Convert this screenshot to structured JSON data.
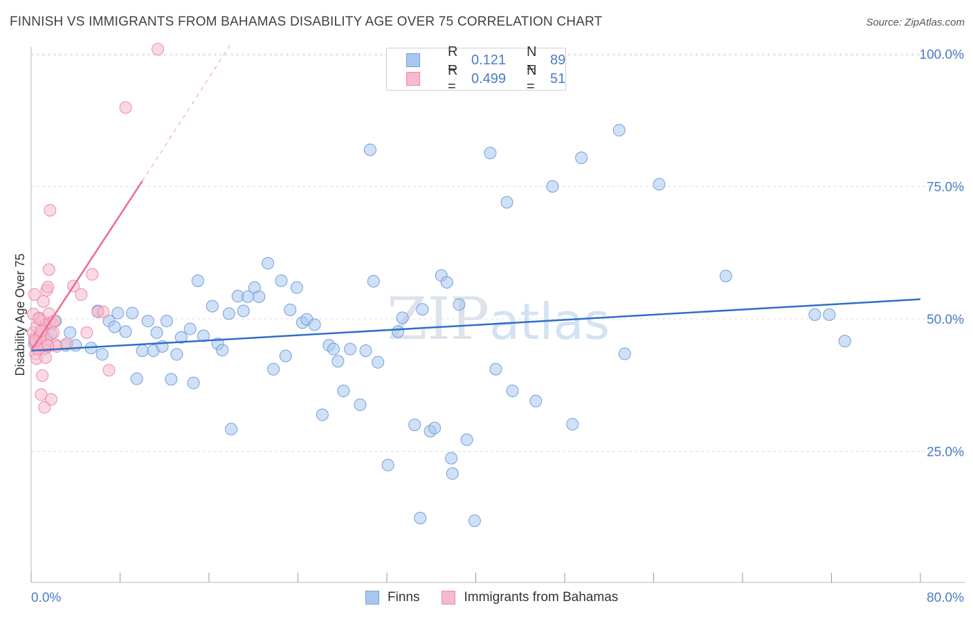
{
  "title": "FINNISH VS IMMIGRANTS FROM BAHAMAS DISABILITY AGE OVER 75 CORRELATION CHART",
  "source": "Source: ZipAtlas.com",
  "watermark": "ZIPatlas",
  "legend": {
    "rows": [
      {
        "r_label": "R =",
        "r_value": "0.121",
        "n_label": "N =",
        "n_value": "89"
      },
      {
        "r_label": "R =",
        "r_value": "0.499",
        "n_label": "N =",
        "n_value": "51"
      }
    ]
  },
  "colors": {
    "finns_fill": "#a9c7ee",
    "finns_stroke": "#6f9fdc",
    "finns_line": "#2f6ec6",
    "bahamas_fill": "#f7b9cc",
    "bahamas_stroke": "#ea8aa8",
    "bahamas_line": "#e86b96",
    "tick_text": "#4a7cc7"
  },
  "chart_data": {
    "type": "scatter",
    "title": "FINNISH VS IMMIGRANTS FROM BAHAMAS DISABILITY AGE OVER 75 CORRELATION CHART",
    "xlabel": "",
    "ylabel": "Disability Age Over 75",
    "xlim": [
      0,
      80
    ],
    "ylim": [
      0,
      105
    ],
    "x_tick_labels": [
      "0.0%",
      "80.0%"
    ],
    "y_ticks": [
      25,
      50,
      75,
      100
    ],
    "y_tick_labels": [
      "25.0%",
      "50.0%",
      "75.0%",
      "100.0%"
    ],
    "grid": "horizontal dashed",
    "legend_position": "top-center",
    "series": [
      {
        "name": "Finns",
        "r": 0.121,
        "n": 89,
        "trend": {
          "x": [
            0,
            80
          ],
          "y": [
            44.0,
            53.7
          ]
        },
        "points": [
          [
            0.3,
            45.3
          ],
          [
            1.2,
            44.3
          ],
          [
            1.8,
            47.2
          ],
          [
            2.2,
            49.6
          ],
          [
            3.1,
            45.0
          ],
          [
            3.5,
            47.4
          ],
          [
            4.0,
            45.0
          ],
          [
            5.4,
            44.5
          ],
          [
            6.0,
            51.5
          ],
          [
            6.4,
            43.3
          ],
          [
            7.0,
            49.6
          ],
          [
            7.5,
            48.5
          ],
          [
            7.8,
            51.1
          ],
          [
            8.5,
            47.6
          ],
          [
            9.1,
            51.1
          ],
          [
            9.5,
            38.7
          ],
          [
            10.0,
            44.0
          ],
          [
            10.5,
            49.6
          ],
          [
            11.0,
            44.0
          ],
          [
            11.3,
            47.4
          ],
          [
            11.8,
            44.8
          ],
          [
            12.2,
            49.6
          ],
          [
            12.6,
            38.6
          ],
          [
            13.1,
            43.3
          ],
          [
            13.5,
            46.5
          ],
          [
            14.3,
            48.1
          ],
          [
            14.6,
            37.9
          ],
          [
            15.0,
            57.2
          ],
          [
            15.5,
            46.8
          ],
          [
            16.3,
            52.4
          ],
          [
            16.8,
            45.3
          ],
          [
            17.2,
            44.1
          ],
          [
            17.8,
            51.0
          ],
          [
            18.0,
            29.2
          ],
          [
            18.6,
            54.3
          ],
          [
            19.1,
            51.5
          ],
          [
            19.5,
            54.2
          ],
          [
            20.1,
            55.9
          ],
          [
            20.5,
            54.2
          ],
          [
            21.3,
            60.5
          ],
          [
            21.8,
            40.5
          ],
          [
            22.5,
            57.2
          ],
          [
            22.9,
            43.0
          ],
          [
            23.3,
            51.7
          ],
          [
            23.9,
            55.9
          ],
          [
            24.4,
            49.3
          ],
          [
            24.8,
            49.9
          ],
          [
            25.5,
            48.9
          ],
          [
            26.2,
            31.9
          ],
          [
            26.8,
            45.0
          ],
          [
            27.2,
            44.3
          ],
          [
            27.6,
            42.0
          ],
          [
            28.1,
            36.4
          ],
          [
            28.7,
            44.3
          ],
          [
            29.6,
            33.8
          ],
          [
            30.1,
            44.0
          ],
          [
            30.5,
            81.9
          ],
          [
            30.8,
            57.1
          ],
          [
            31.2,
            41.8
          ],
          [
            32.1,
            22.4
          ],
          [
            33.0,
            47.6
          ],
          [
            33.4,
            50.2
          ],
          [
            34.5,
            30.0
          ],
          [
            35.0,
            12.4
          ],
          [
            35.2,
            51.8
          ],
          [
            35.9,
            28.8
          ],
          [
            36.3,
            29.4
          ],
          [
            36.9,
            58.2
          ],
          [
            37.4,
            56.9
          ],
          [
            37.8,
            23.7
          ],
          [
            37.9,
            20.8
          ],
          [
            38.5,
            52.7
          ],
          [
            39.2,
            27.2
          ],
          [
            39.9,
            11.9
          ],
          [
            41.3,
            81.3
          ],
          [
            41.8,
            40.5
          ],
          [
            42.8,
            72.0
          ],
          [
            43.3,
            36.4
          ],
          [
            45.4,
            34.5
          ],
          [
            46.9,
            75.0
          ],
          [
            48.7,
            30.1
          ],
          [
            49.5,
            80.4
          ],
          [
            52.9,
            85.6
          ],
          [
            53.4,
            43.4
          ],
          [
            56.5,
            75.4
          ],
          [
            62.5,
            58.1
          ],
          [
            70.5,
            50.8
          ],
          [
            71.8,
            50.8
          ],
          [
            73.2,
            45.8
          ]
        ]
      },
      {
        "name": "Immigrants from Bahamas",
        "r": 0.499,
        "n": 51,
        "trend": {
          "x": [
            0,
            10
          ],
          "y": [
            44.0,
            76.0
          ]
        },
        "trend_ext": {
          "x": [
            10,
            18
          ],
          "y": [
            76.0,
            102.0
          ]
        },
        "points": [
          [
            0.2,
            47.4
          ],
          [
            0.3,
            46.2
          ],
          [
            0.4,
            45.6
          ],
          [
            0.5,
            48.5
          ],
          [
            0.6,
            44.3
          ],
          [
            0.7,
            50.2
          ],
          [
            0.8,
            47.0
          ],
          [
            0.9,
            45.8
          ],
          [
            1.0,
            49.6
          ],
          [
            1.1,
            47.6
          ],
          [
            1.2,
            45.1
          ],
          [
            1.3,
            48.9
          ],
          [
            1.4,
            46.2
          ],
          [
            1.5,
            44.8
          ],
          [
            1.6,
            51.0
          ],
          [
            1.7,
            49.2
          ],
          [
            0.2,
            50.9
          ],
          [
            0.3,
            54.6
          ],
          [
            0.4,
            43.4
          ],
          [
            0.5,
            42.5
          ],
          [
            0.6,
            44.3
          ],
          [
            0.7,
            50.0
          ],
          [
            0.8,
            46.5
          ],
          [
            0.9,
            35.7
          ],
          [
            1.0,
            39.3
          ],
          [
            1.1,
            53.3
          ],
          [
            1.2,
            33.3
          ],
          [
            1.3,
            42.7
          ],
          [
            1.4,
            55.4
          ],
          [
            1.5,
            56.0
          ],
          [
            1.6,
            59.3
          ],
          [
            1.7,
            70.5
          ],
          [
            1.8,
            34.8
          ],
          [
            1.9,
            49.2
          ],
          [
            2.0,
            47.4
          ],
          [
            2.1,
            49.6
          ],
          [
            2.2,
            45.1
          ],
          [
            2.3,
            44.8
          ],
          [
            3.2,
            45.3
          ],
          [
            3.8,
            56.2
          ],
          [
            4.5,
            54.6
          ],
          [
            5.0,
            47.4
          ],
          [
            5.5,
            58.4
          ],
          [
            6.0,
            51.3
          ],
          [
            6.5,
            51.3
          ],
          [
            7.0,
            40.3
          ],
          [
            8.5,
            89.9
          ],
          [
            11.4,
            100.9
          ],
          [
            0.4,
            45.9
          ],
          [
            0.9,
            47.7
          ],
          [
            1.5,
            45.0
          ]
        ]
      }
    ]
  },
  "bottom_legend": [
    "Finns",
    "Immigrants from Bahamas"
  ]
}
